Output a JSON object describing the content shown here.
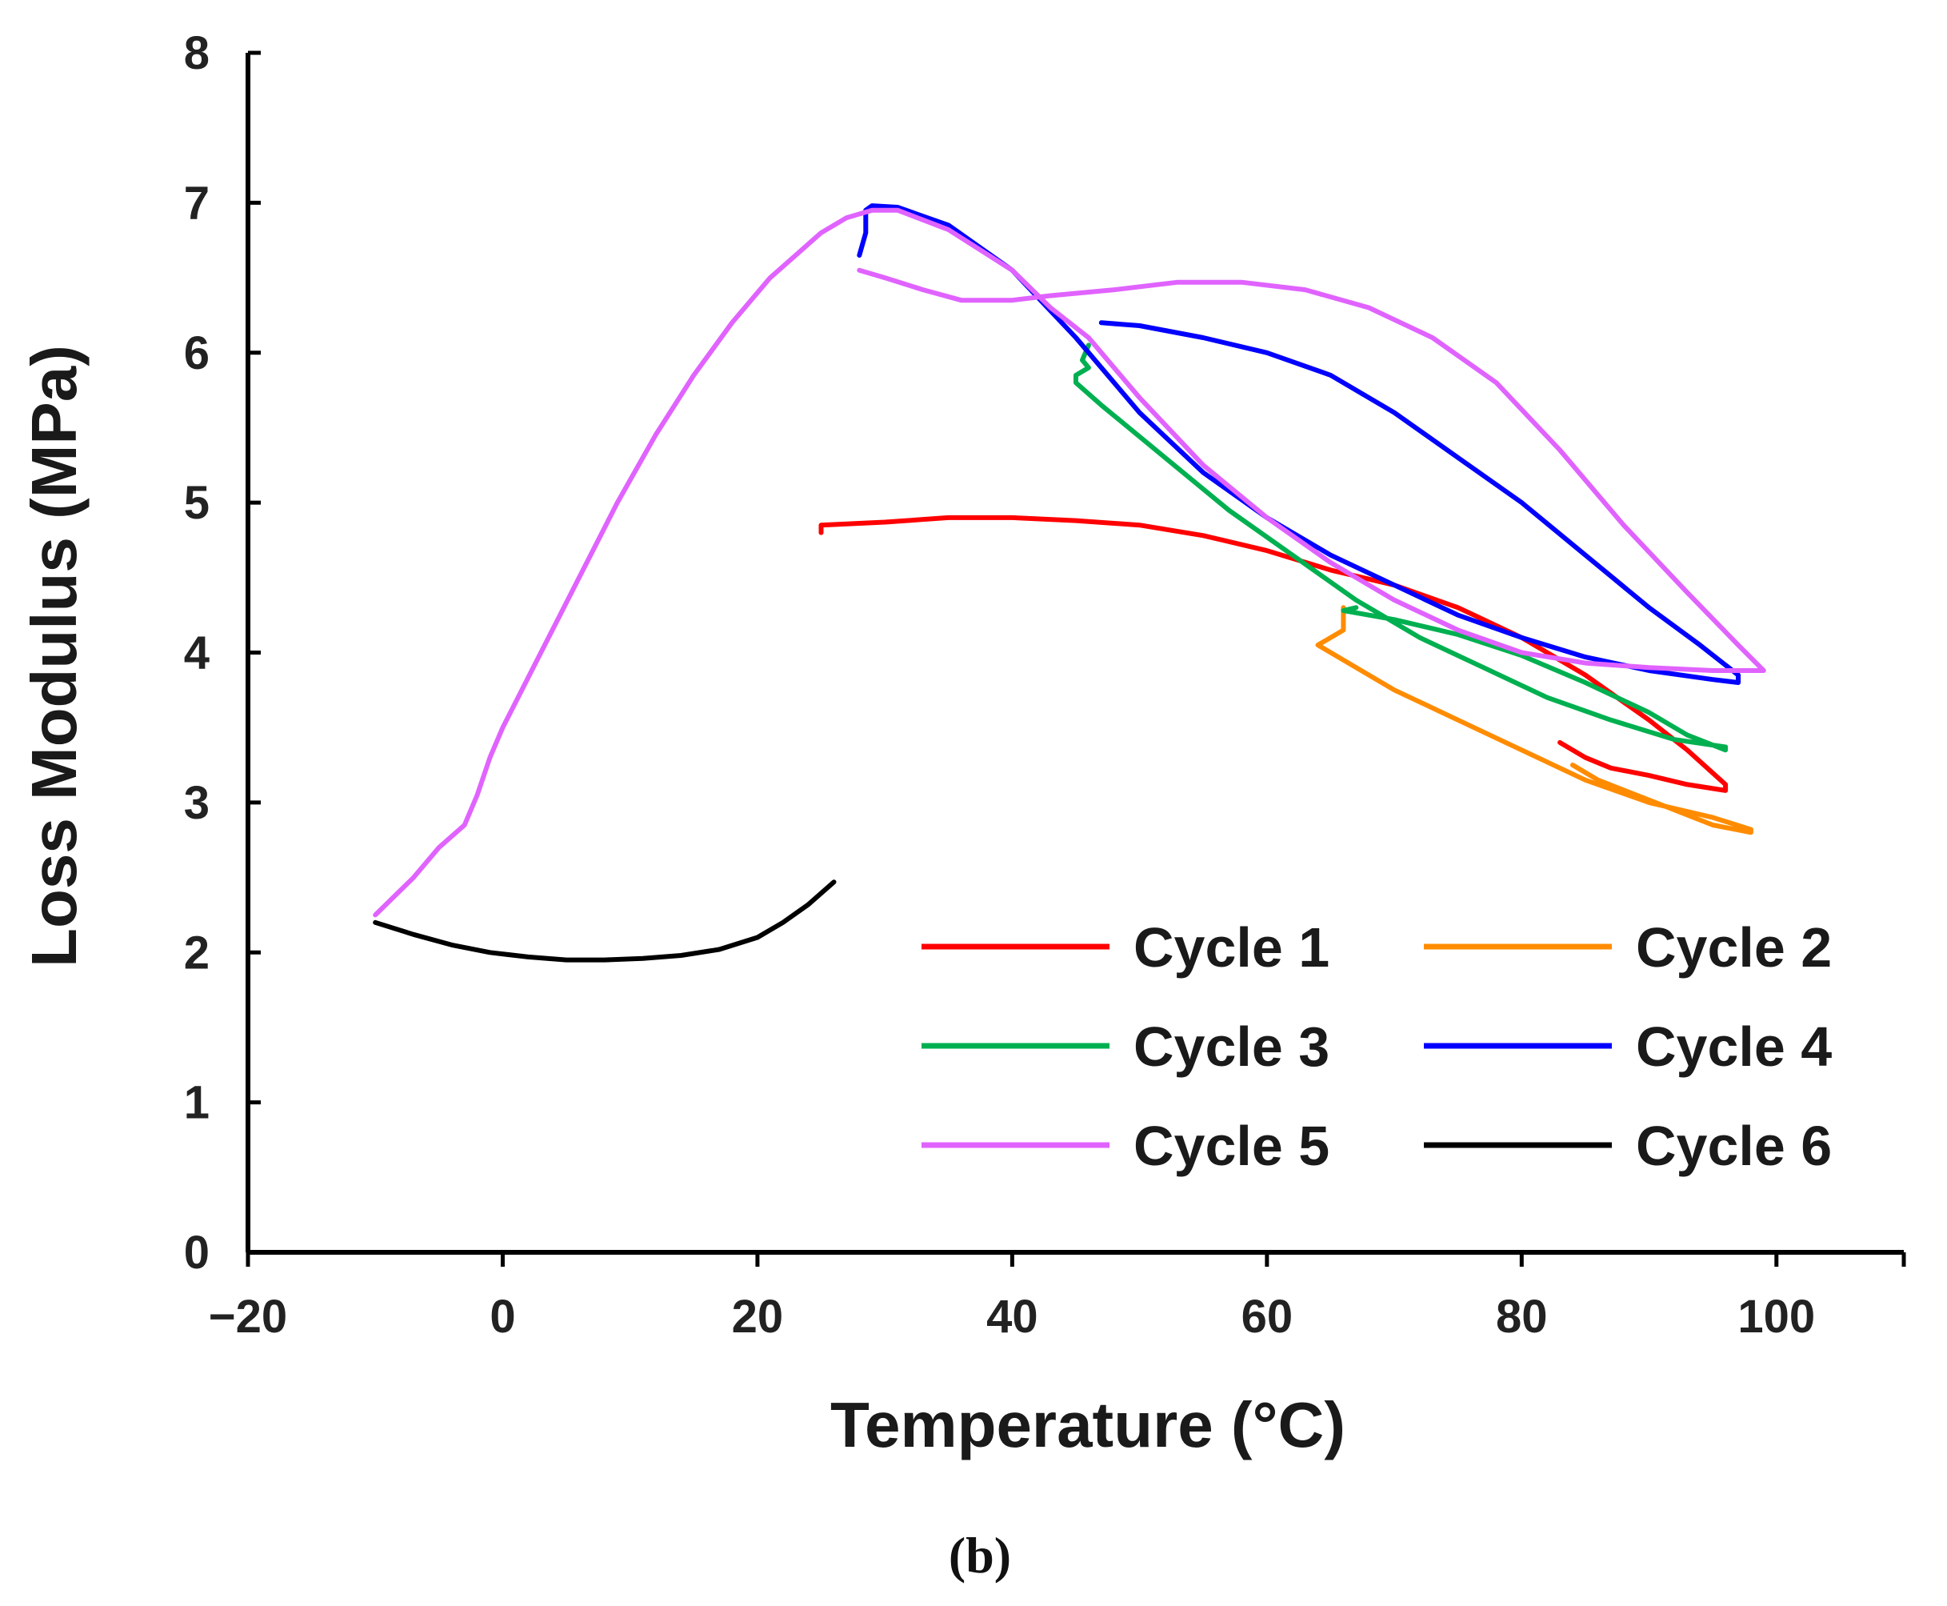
{
  "chart_data": {
    "type": "line",
    "title": "",
    "xlabel": "Temperature (°C)",
    "ylabel": "Loss Modulus (MPa)",
    "panel_label": "(b)",
    "xlim": [
      -20,
      110
    ],
    "ylim": [
      0,
      8
    ],
    "xticks": [
      -20,
      0,
      20,
      40,
      60,
      80,
      100
    ],
    "xtick_labels": [
      "−20",
      "0",
      "20",
      "40",
      "60",
      "80",
      "100"
    ],
    "yticks": [
      0,
      1,
      2,
      3,
      4,
      5,
      6,
      7,
      8
    ],
    "ytick_labels": [
      "0",
      "1",
      "2",
      "3",
      "4",
      "5",
      "6",
      "7",
      "8"
    ],
    "grid": false,
    "legend_position": "bottom-right",
    "series": [
      {
        "name": "Cycle 1",
        "color": "#ff0000",
        "x": [
          25,
          25,
          30,
          35,
          40,
          45,
          50,
          55,
          60,
          65,
          70,
          75,
          80,
          85,
          90,
          93,
          96,
          96,
          93,
          90,
          87,
          85,
          83
        ],
        "y": [
          4.8,
          4.85,
          4.87,
          4.9,
          4.9,
          4.88,
          4.85,
          4.78,
          4.68,
          4.55,
          4.45,
          4.3,
          4.1,
          3.85,
          3.55,
          3.35,
          3.12,
          3.08,
          3.12,
          3.18,
          3.23,
          3.3,
          3.4
        ]
      },
      {
        "name": "Cycle 2",
        "color": "#ff8c00",
        "x": [
          66,
          66,
          65,
          64,
          67,
          70,
          75,
          80,
          85,
          90,
          95,
          98,
          98,
          95,
          92,
          89,
          86,
          84
        ],
        "y": [
          4.3,
          4.15,
          4.1,
          4.05,
          3.9,
          3.75,
          3.55,
          3.35,
          3.15,
          3.0,
          2.9,
          2.82,
          2.8,
          2.85,
          2.95,
          3.05,
          3.15,
          3.25
        ]
      },
      {
        "name": "Cycle 3",
        "color": "#00b050",
        "x": [
          46,
          45.5,
          46,
          45,
          45,
          47,
          52,
          57,
          62,
          67,
          72,
          77,
          82,
          87,
          92,
          96,
          96,
          93,
          90,
          85,
          80,
          75,
          70,
          66,
          67
        ],
        "y": [
          6.05,
          5.95,
          5.9,
          5.85,
          5.8,
          5.65,
          5.3,
          4.95,
          4.65,
          4.35,
          4.1,
          3.9,
          3.7,
          3.55,
          3.42,
          3.37,
          3.35,
          3.45,
          3.6,
          3.8,
          3.98,
          4.12,
          4.22,
          4.28,
          4.3
        ]
      },
      {
        "name": "Cycle 4",
        "color": "#0000ff",
        "x": [
          28,
          28.5,
          28.5,
          29,
          31,
          35,
          40,
          45,
          50,
          55,
          60,
          65,
          70,
          75,
          80,
          85,
          90,
          95,
          97,
          97,
          94,
          90,
          85,
          80,
          75,
          70,
          65,
          60,
          55,
          50,
          47
        ],
        "y": [
          6.65,
          6.8,
          6.95,
          6.98,
          6.97,
          6.85,
          6.55,
          6.1,
          5.6,
          5.2,
          4.9,
          4.65,
          4.45,
          4.25,
          4.1,
          3.97,
          3.88,
          3.82,
          3.8,
          3.85,
          4.05,
          4.3,
          4.65,
          5.0,
          5.3,
          5.6,
          5.85,
          6.0,
          6.1,
          6.18,
          6.2
        ]
      },
      {
        "name": "Cycle 5",
        "color": "#e063ff",
        "x": [
          -10,
          -7,
          -5,
          -3,
          -2,
          -1,
          0,
          3,
          6,
          9,
          12,
          15,
          18,
          21,
          23,
          25,
          27,
          29,
          31,
          35,
          40,
          43,
          46,
          50,
          55,
          60,
          65,
          70,
          75,
          80,
          85,
          90,
          95,
          99,
          97,
          93,
          88,
          83,
          78,
          73,
          68,
          63,
          58,
          53,
          48,
          43,
          40,
          36,
          33,
          30,
          28
        ],
        "y": [
          2.25,
          2.5,
          2.7,
          2.85,
          3.05,
          3.3,
          3.5,
          4.0,
          4.5,
          5.0,
          5.45,
          5.85,
          6.2,
          6.5,
          6.65,
          6.8,
          6.9,
          6.95,
          6.95,
          6.82,
          6.55,
          6.3,
          6.1,
          5.7,
          5.25,
          4.9,
          4.6,
          4.35,
          4.15,
          4.0,
          3.93,
          3.9,
          3.88,
          3.88,
          4.05,
          4.4,
          4.85,
          5.35,
          5.8,
          6.1,
          6.3,
          6.42,
          6.47,
          6.47,
          6.42,
          6.38,
          6.35,
          6.35,
          6.42,
          6.5,
          6.55
        ]
      },
      {
        "name": "Cycle 6",
        "color": "#000000",
        "x": [
          -10,
          -7,
          -4,
          -1,
          2,
          5,
          8,
          11,
          14,
          17,
          20,
          22,
          24,
          26
        ],
        "y": [
          2.2,
          2.12,
          2.05,
          2.0,
          1.97,
          1.95,
          1.95,
          1.96,
          1.98,
          2.02,
          2.1,
          2.2,
          2.32,
          2.47
        ]
      }
    ]
  }
}
